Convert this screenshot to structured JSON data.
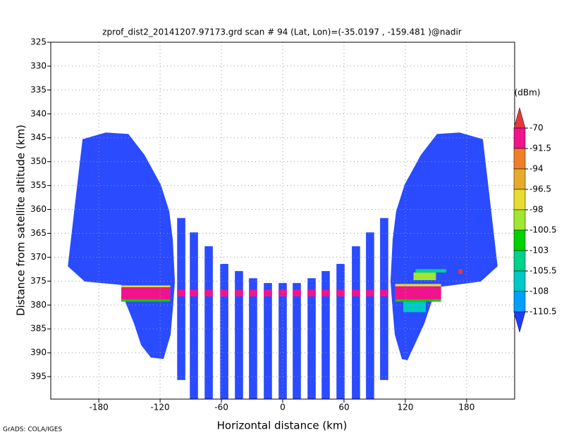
{
  "chart_data": {
    "type": "field",
    "title": "zprof_dist2_20141207.97173.grd  scan # 94  (Lat, Lon)=(-35.0197 , -159.481 )@nadir",
    "x_label": "Horizontal distance (km)",
    "y_label": "Distance from satellite altitude (km)",
    "footer": "GrADS: COLA/IGES",
    "xlim": [
      -227,
      227
    ],
    "ylim": [
      325,
      399.7
    ],
    "y_reversed": true,
    "xticks": [
      -180,
      -120,
      -60,
      0,
      60,
      120,
      180
    ],
    "yticks": [
      325,
      330,
      335,
      340,
      345,
      350,
      355,
      360,
      365,
      370,
      375,
      380,
      385,
      390,
      395
    ],
    "grid": true,
    "colorbar": {
      "unit_label": "(dBm)",
      "levels": [
        -70,
        -91.5,
        -94,
        -96.5,
        -98,
        -100.5,
        -103,
        -105.5,
        -108,
        -110.5
      ],
      "colors": [
        "#e6373c",
        "#f0148c",
        "#f07d28",
        "#e6aa2d",
        "#e6dc32",
        "#a0e632",
        "#00d200",
        "#00d28c",
        "#00c8c8",
        "#00a0ff",
        "#1e3cff"
      ]
    },
    "regions": [
      {
        "value": -110.5,
        "color": "#2a4bff",
        "outline": [
          [
            -195.9,
            345.3
          ],
          [
            -173.1,
            343.9
          ],
          [
            -151.0,
            344.2
          ],
          [
            -135.2,
            348.6
          ],
          [
            -119.3,
            354.8
          ],
          [
            -111.0,
            360.4
          ],
          [
            -107.6,
            366.3
          ],
          [
            -105.5,
            375.1
          ],
          [
            -107.6,
            381.0
          ],
          [
            -109.7,
            386.2
          ],
          [
            -116.6,
            391.3
          ],
          [
            -129.0,
            391.0
          ],
          [
            -138.6,
            388.4
          ],
          [
            -145.5,
            383.9
          ],
          [
            -153.8,
            379.5
          ],
          [
            -157.9,
            375.8
          ],
          [
            -193.8,
            375.1
          ],
          [
            -210.3,
            371.9
          ],
          [
            -204.1,
            360.4
          ]
        ]
      },
      {
        "value": -110.5,
        "color": "#2a4bff",
        "outline": [
          [
            195.9,
            345.3
          ],
          [
            173.1,
            343.9
          ],
          [
            151.0,
            344.2
          ],
          [
            135.2,
            348.6
          ],
          [
            119.3,
            354.8
          ],
          [
            111.0,
            360.4
          ],
          [
            107.6,
            366.3
          ],
          [
            105.5,
            375.1
          ],
          [
            107.6,
            381.0
          ],
          [
            109.7,
            386.2
          ],
          [
            116.6,
            391.3
          ],
          [
            122.0,
            391.6
          ],
          [
            129.0,
            388.4
          ],
          [
            138.6,
            383.9
          ],
          [
            145.5,
            379.5
          ],
          [
            153.8,
            376.2
          ],
          [
            193.8,
            375.1
          ],
          [
            210.3,
            371.9
          ],
          [
            204.1,
            360.4
          ]
        ]
      }
    ],
    "beam_width": 8,
    "beams": [
      {
        "x": -99.3,
        "top": 361.8,
        "bottom": 395.7
      },
      {
        "x": -86.9,
        "top": 364.8,
        "bottom": 399.7
      },
      {
        "x": -72.4,
        "top": 367.7,
        "bottom": 399.7
      },
      {
        "x": -57.2,
        "top": 371.4,
        "bottom": 399.7
      },
      {
        "x": -42.8,
        "top": 372.9,
        "bottom": 399.7
      },
      {
        "x": -29.0,
        "top": 374.4,
        "bottom": 399.7
      },
      {
        "x": -14.5,
        "top": 375.4,
        "bottom": 399.7
      },
      {
        "x": 0,
        "top": 375.4,
        "bottom": 399.7
      },
      {
        "x": 13.8,
        "top": 375.4,
        "bottom": 399.7
      },
      {
        "x": 28.3,
        "top": 374.4,
        "bottom": 399.7
      },
      {
        "x": 42.1,
        "top": 372.9,
        "bottom": 399.7
      },
      {
        "x": 56.6,
        "top": 371.4,
        "bottom": 399.7
      },
      {
        "x": 71.7,
        "top": 367.7,
        "bottom": 399.7
      },
      {
        "x": 85.5,
        "top": 364.8,
        "bottom": 399.7
      },
      {
        "x": 99.3,
        "top": 361.8,
        "bottom": 395.7
      }
    ],
    "bright_band": {
      "value": -91.5,
      "color": "#f0148c",
      "top": 376.8,
      "bottom": 378.2
    },
    "patches": [
      {
        "value": -98,
        "color": "#e6dc32",
        "x": [
          -158,
          -110
        ],
        "y": [
          375.9,
          376.3
        ]
      },
      {
        "value": -91.5,
        "color": "#f0148c",
        "x": [
          -158,
          -110
        ],
        "y": [
          376.3,
          378.8
        ]
      },
      {
        "value": -103,
        "color": "#00d200",
        "x": [
          -158,
          -110
        ],
        "y": [
          378.8,
          379.3
        ]
      },
      {
        "value": -98,
        "color": "#e6dc32",
        "x": [
          110,
          155
        ],
        "y": [
          375.6,
          376.1
        ]
      },
      {
        "value": -91.5,
        "color": "#f0148c",
        "x": [
          110,
          155
        ],
        "y": [
          376.1,
          378.8
        ]
      },
      {
        "value": -103,
        "color": "#00d200",
        "x": [
          110,
          155
        ],
        "y": [
          378.8,
          379.3
        ]
      },
      {
        "value": -100.5,
        "color": "#a0e632",
        "x": [
          128,
          150
        ],
        "y": [
          373.2,
          374.8
        ]
      },
      {
        "value": -105.5,
        "color": "#00d28c",
        "x": [
          130,
          160
        ],
        "y": [
          372.5,
          373.2
        ]
      },
      {
        "value": -108,
        "color": "#00c8c8",
        "x": [
          118,
          140
        ],
        "y": [
          379.3,
          381.5
        ]
      },
      {
        "value": -70,
        "color": "#e6373c",
        "x": [
          172,
          176
        ],
        "y": [
          372.5,
          373.5
        ]
      }
    ]
  }
}
